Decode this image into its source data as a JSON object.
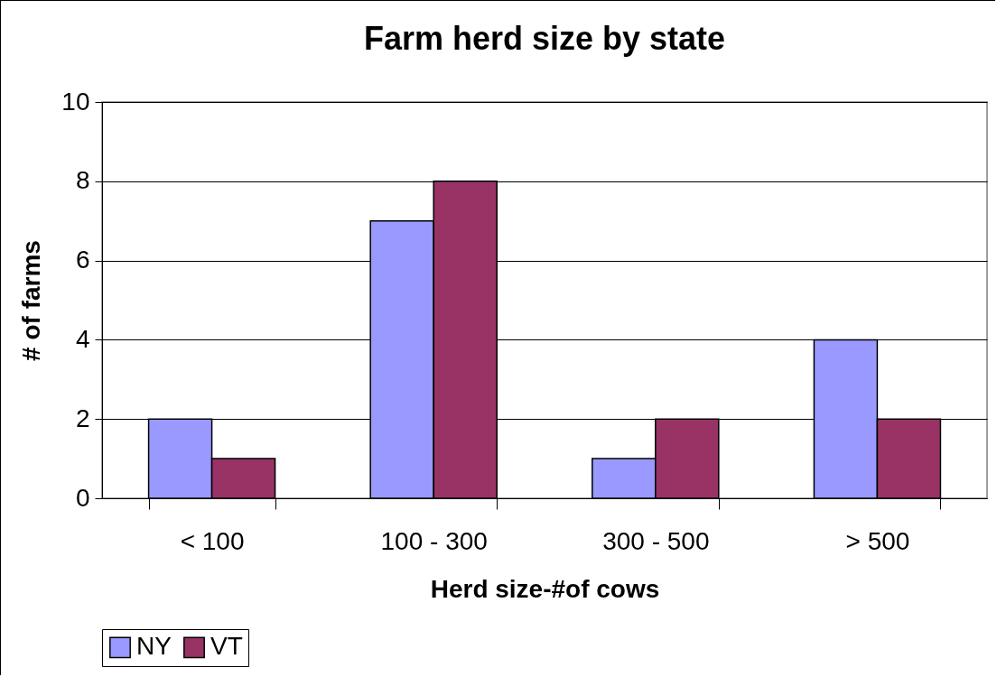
{
  "chart_data": {
    "type": "bar",
    "title": "Farm herd size by state",
    "xlabel": "Herd size-#of cows",
    "ylabel": "# of farms",
    "categories": [
      "< 100",
      "100 - 300",
      "300 - 500",
      "> 500"
    ],
    "series": [
      {
        "name": "NY",
        "color": "#9999ff",
        "values": [
          2,
          7,
          1,
          4
        ]
      },
      {
        "name": "VT",
        "color": "#993366",
        "values": [
          1,
          8,
          2,
          2
        ]
      }
    ],
    "ylim": [
      0,
      10
    ],
    "yticks": [
      0,
      2,
      4,
      6,
      8,
      10
    ],
    "grid": "y",
    "legend": "bottom"
  }
}
